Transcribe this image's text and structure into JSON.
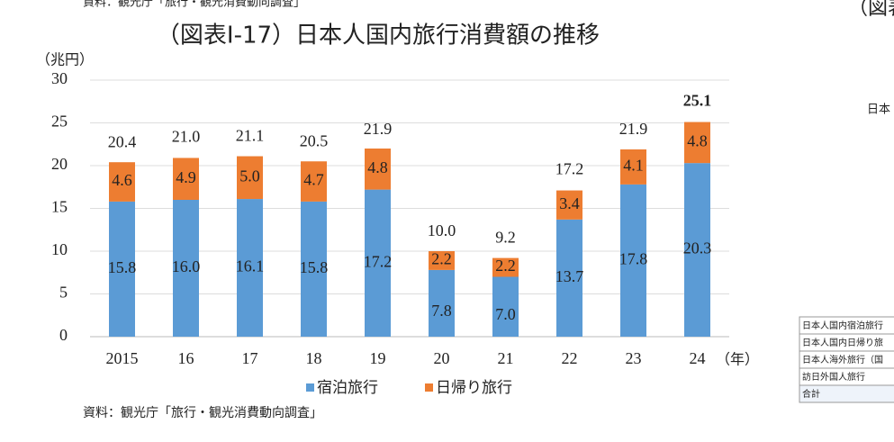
{
  "chart_data": {
    "type": "stacked-bar",
    "title": "（図表Ⅰ-17）日本人国内旅行消費額の推移",
    "y_label": "（兆円）",
    "x_label": "（年）",
    "source": "資料：観光庁「旅行・観光消費動向調査」",
    "categories": [
      "2015",
      "16",
      "17",
      "18",
      "19",
      "20",
      "21",
      "22",
      "23",
      "24"
    ],
    "series": [
      {
        "name": "宿泊旅行",
        "color": "#5b9bd5",
        "values": [
          15.8,
          16.0,
          16.1,
          15.8,
          17.2,
          7.8,
          7.0,
          13.7,
          17.8,
          20.3
        ],
        "value_labels": [
          "15.8",
          "16.0",
          "16.1",
          "15.8",
          "17.2",
          "7.8",
          "7.0",
          "13.7",
          "17.8",
          "20.3"
        ]
      },
      {
        "name": "日帰り旅行",
        "color": "#ed7d31",
        "values": [
          4.6,
          4.9,
          5.0,
          4.7,
          4.8,
          2.2,
          2.2,
          3.4,
          4.1,
          4.8
        ],
        "value_labels": [
          "4.6",
          "4.9",
          "5.0",
          "4.7",
          "4.8",
          "2.2",
          "2.2",
          "3.4",
          "4.1",
          "4.8"
        ]
      }
    ],
    "totals": {
      "values": [
        20.4,
        21.0,
        21.1,
        20.5,
        21.9,
        10.0,
        9.2,
        17.2,
        21.9,
        25.1
      ],
      "value_labels": [
        "20.4",
        "21.0",
        "21.1",
        "20.5",
        "21.9",
        "10.0",
        "9.2",
        "17.2",
        "21.9",
        "25.1"
      ]
    },
    "ylim": [
      0,
      30
    ],
    "yticks": [
      0,
      5,
      10,
      15,
      20,
      25,
      30
    ],
    "grid": true,
    "legend": "bottom"
  },
  "page": {
    "top_source": "資料：観光庁「旅行・観光消費動向調査」",
    "right_title": "（図表",
    "right_label": "日本",
    "right_table": [
      "日本人国内宿泊旅行",
      "日本人国内日帰り旅",
      "日本人海外旅行（国",
      "訪日外国人旅行",
      "合計"
    ]
  }
}
